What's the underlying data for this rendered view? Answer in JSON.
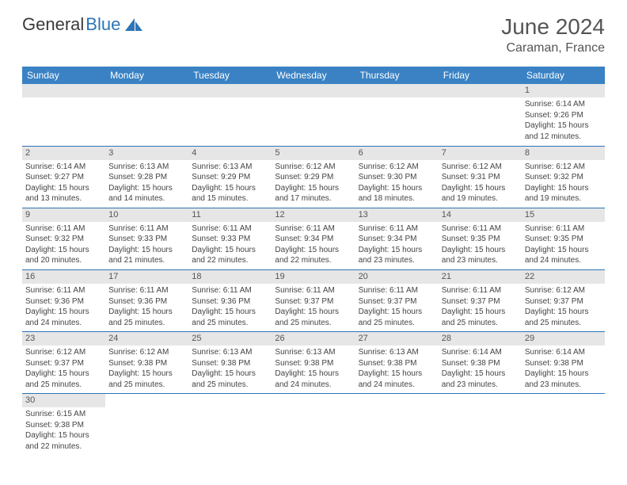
{
  "logo": {
    "text1": "General",
    "text2": "Blue"
  },
  "header": {
    "monthYear": "June 2024",
    "location": "Caraman, France"
  },
  "colors": {
    "headerBar": "#3a82c4",
    "dayStrip": "#e6e6e6",
    "rowBorder": "#2e75b6",
    "logoBlue": "#2e75b6",
    "textDark": "#555555"
  },
  "weekdays": [
    "Sunday",
    "Monday",
    "Tuesday",
    "Wednesday",
    "Thursday",
    "Friday",
    "Saturday"
  ],
  "startOffset": 6,
  "days": [
    {
      "n": "1",
      "sunrise": "6:14 AM",
      "sunset": "9:26 PM",
      "daylight": "15 hours and 12 minutes."
    },
    {
      "n": "2",
      "sunrise": "6:14 AM",
      "sunset": "9:27 PM",
      "daylight": "15 hours and 13 minutes."
    },
    {
      "n": "3",
      "sunrise": "6:13 AM",
      "sunset": "9:28 PM",
      "daylight": "15 hours and 14 minutes."
    },
    {
      "n": "4",
      "sunrise": "6:13 AM",
      "sunset": "9:29 PM",
      "daylight": "15 hours and 15 minutes."
    },
    {
      "n": "5",
      "sunrise": "6:12 AM",
      "sunset": "9:29 PM",
      "daylight": "15 hours and 17 minutes."
    },
    {
      "n": "6",
      "sunrise": "6:12 AM",
      "sunset": "9:30 PM",
      "daylight": "15 hours and 18 minutes."
    },
    {
      "n": "7",
      "sunrise": "6:12 AM",
      "sunset": "9:31 PM",
      "daylight": "15 hours and 19 minutes."
    },
    {
      "n": "8",
      "sunrise": "6:12 AM",
      "sunset": "9:32 PM",
      "daylight": "15 hours and 19 minutes."
    },
    {
      "n": "9",
      "sunrise": "6:11 AM",
      "sunset": "9:32 PM",
      "daylight": "15 hours and 20 minutes."
    },
    {
      "n": "10",
      "sunrise": "6:11 AM",
      "sunset": "9:33 PM",
      "daylight": "15 hours and 21 minutes."
    },
    {
      "n": "11",
      "sunrise": "6:11 AM",
      "sunset": "9:33 PM",
      "daylight": "15 hours and 22 minutes."
    },
    {
      "n": "12",
      "sunrise": "6:11 AM",
      "sunset": "9:34 PM",
      "daylight": "15 hours and 22 minutes."
    },
    {
      "n": "13",
      "sunrise": "6:11 AM",
      "sunset": "9:34 PM",
      "daylight": "15 hours and 23 minutes."
    },
    {
      "n": "14",
      "sunrise": "6:11 AM",
      "sunset": "9:35 PM",
      "daylight": "15 hours and 23 minutes."
    },
    {
      "n": "15",
      "sunrise": "6:11 AM",
      "sunset": "9:35 PM",
      "daylight": "15 hours and 24 minutes."
    },
    {
      "n": "16",
      "sunrise": "6:11 AM",
      "sunset": "9:36 PM",
      "daylight": "15 hours and 24 minutes."
    },
    {
      "n": "17",
      "sunrise": "6:11 AM",
      "sunset": "9:36 PM",
      "daylight": "15 hours and 25 minutes."
    },
    {
      "n": "18",
      "sunrise": "6:11 AM",
      "sunset": "9:36 PM",
      "daylight": "15 hours and 25 minutes."
    },
    {
      "n": "19",
      "sunrise": "6:11 AM",
      "sunset": "9:37 PM",
      "daylight": "15 hours and 25 minutes."
    },
    {
      "n": "20",
      "sunrise": "6:11 AM",
      "sunset": "9:37 PM",
      "daylight": "15 hours and 25 minutes."
    },
    {
      "n": "21",
      "sunrise": "6:11 AM",
      "sunset": "9:37 PM",
      "daylight": "15 hours and 25 minutes."
    },
    {
      "n": "22",
      "sunrise": "6:12 AM",
      "sunset": "9:37 PM",
      "daylight": "15 hours and 25 minutes."
    },
    {
      "n": "23",
      "sunrise": "6:12 AM",
      "sunset": "9:37 PM",
      "daylight": "15 hours and 25 minutes."
    },
    {
      "n": "24",
      "sunrise": "6:12 AM",
      "sunset": "9:38 PM",
      "daylight": "15 hours and 25 minutes."
    },
    {
      "n": "25",
      "sunrise": "6:13 AM",
      "sunset": "9:38 PM",
      "daylight": "15 hours and 25 minutes."
    },
    {
      "n": "26",
      "sunrise": "6:13 AM",
      "sunset": "9:38 PM",
      "daylight": "15 hours and 24 minutes."
    },
    {
      "n": "27",
      "sunrise": "6:13 AM",
      "sunset": "9:38 PM",
      "daylight": "15 hours and 24 minutes."
    },
    {
      "n": "28",
      "sunrise": "6:14 AM",
      "sunset": "9:38 PM",
      "daylight": "15 hours and 23 minutes."
    },
    {
      "n": "29",
      "sunrise": "6:14 AM",
      "sunset": "9:38 PM",
      "daylight": "15 hours and 23 minutes."
    },
    {
      "n": "30",
      "sunrise": "6:15 AM",
      "sunset": "9:38 PM",
      "daylight": "15 hours and 22 minutes."
    }
  ],
  "labels": {
    "sunrise": "Sunrise:",
    "sunset": "Sunset:",
    "daylight": "Daylight:"
  }
}
